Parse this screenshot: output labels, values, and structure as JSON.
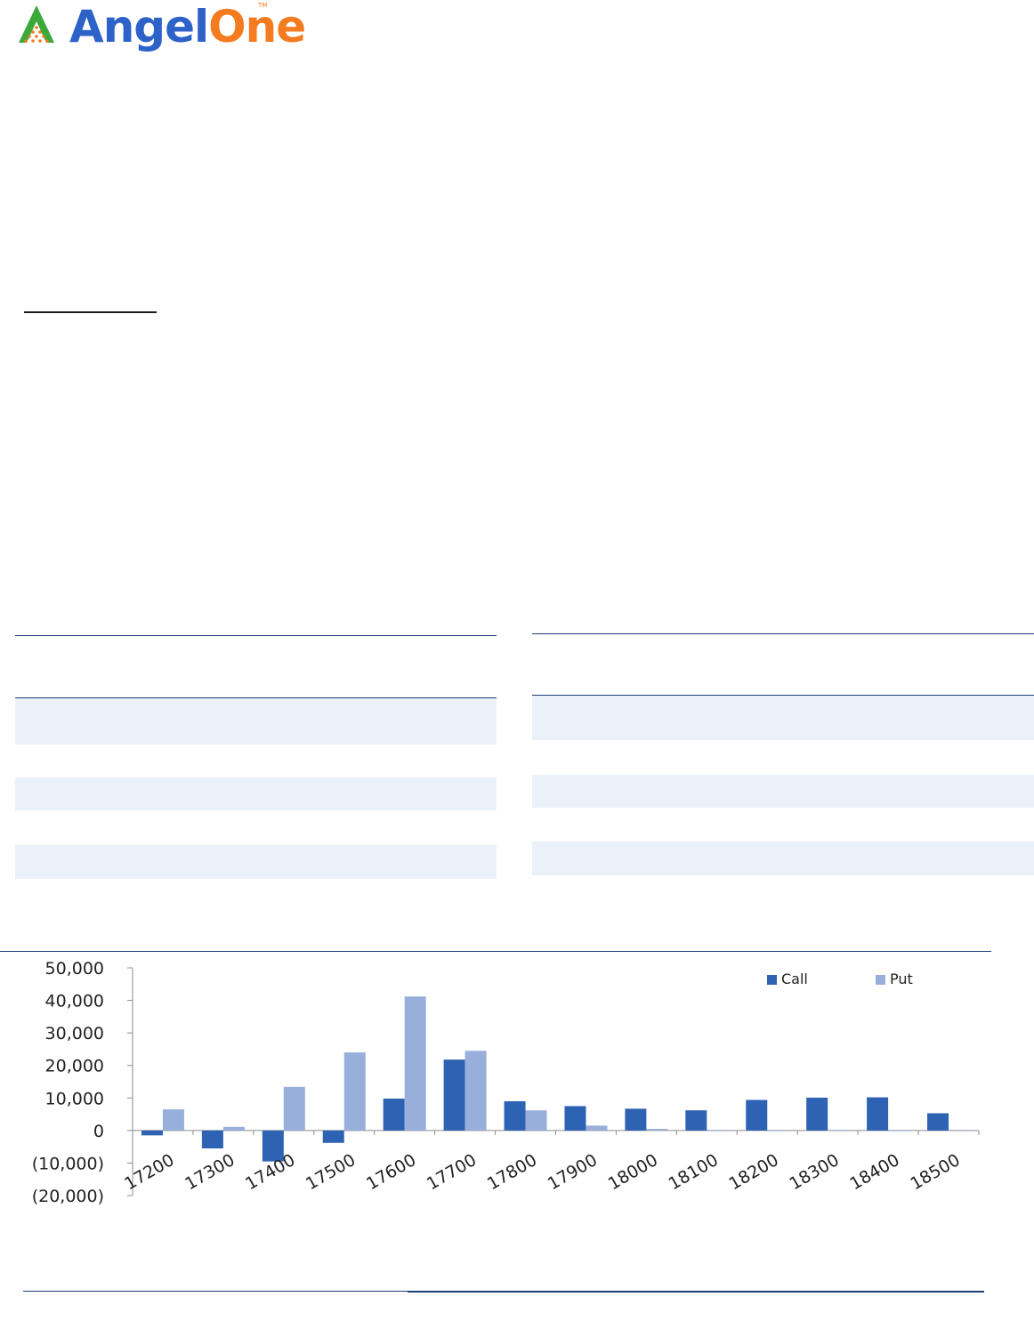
{
  "brand": {
    "name_part1": "Angel",
    "name_part2": "One",
    "trademark": "TM",
    "colors": {
      "blue": "#2d63c9",
      "orange": "#f47b20",
      "green": "#3aa93a"
    }
  },
  "chart_data": {
    "type": "bar",
    "categories": [
      "17200",
      "17300",
      "17400",
      "17500",
      "17600",
      "17700",
      "17800",
      "17900",
      "18000",
      "18100",
      "18200",
      "18300",
      "18400",
      "18500"
    ],
    "series": [
      {
        "name": "Call",
        "color": "#2e62b3",
        "values": [
          -1500,
          -5500,
          -9500,
          -3800,
          9800,
          21800,
          9000,
          7500,
          6700,
          6200,
          9400,
          10100,
          10200,
          5300
        ]
      },
      {
        "name": "Put",
        "color": "#98afdb",
        "values": [
          6500,
          1100,
          13400,
          24000,
          41200,
          24500,
          6200,
          1500,
          500,
          200,
          -200,
          200,
          0,
          200
        ]
      }
    ],
    "y_ticks": [
      "50,000",
      "40,000",
      "30,000",
      "20,000",
      "10,000",
      "0",
      "(10,000)",
      "(20,000)"
    ],
    "ylim": [
      -20000,
      50000
    ],
    "legend_position": "top-right",
    "grid": false
  }
}
